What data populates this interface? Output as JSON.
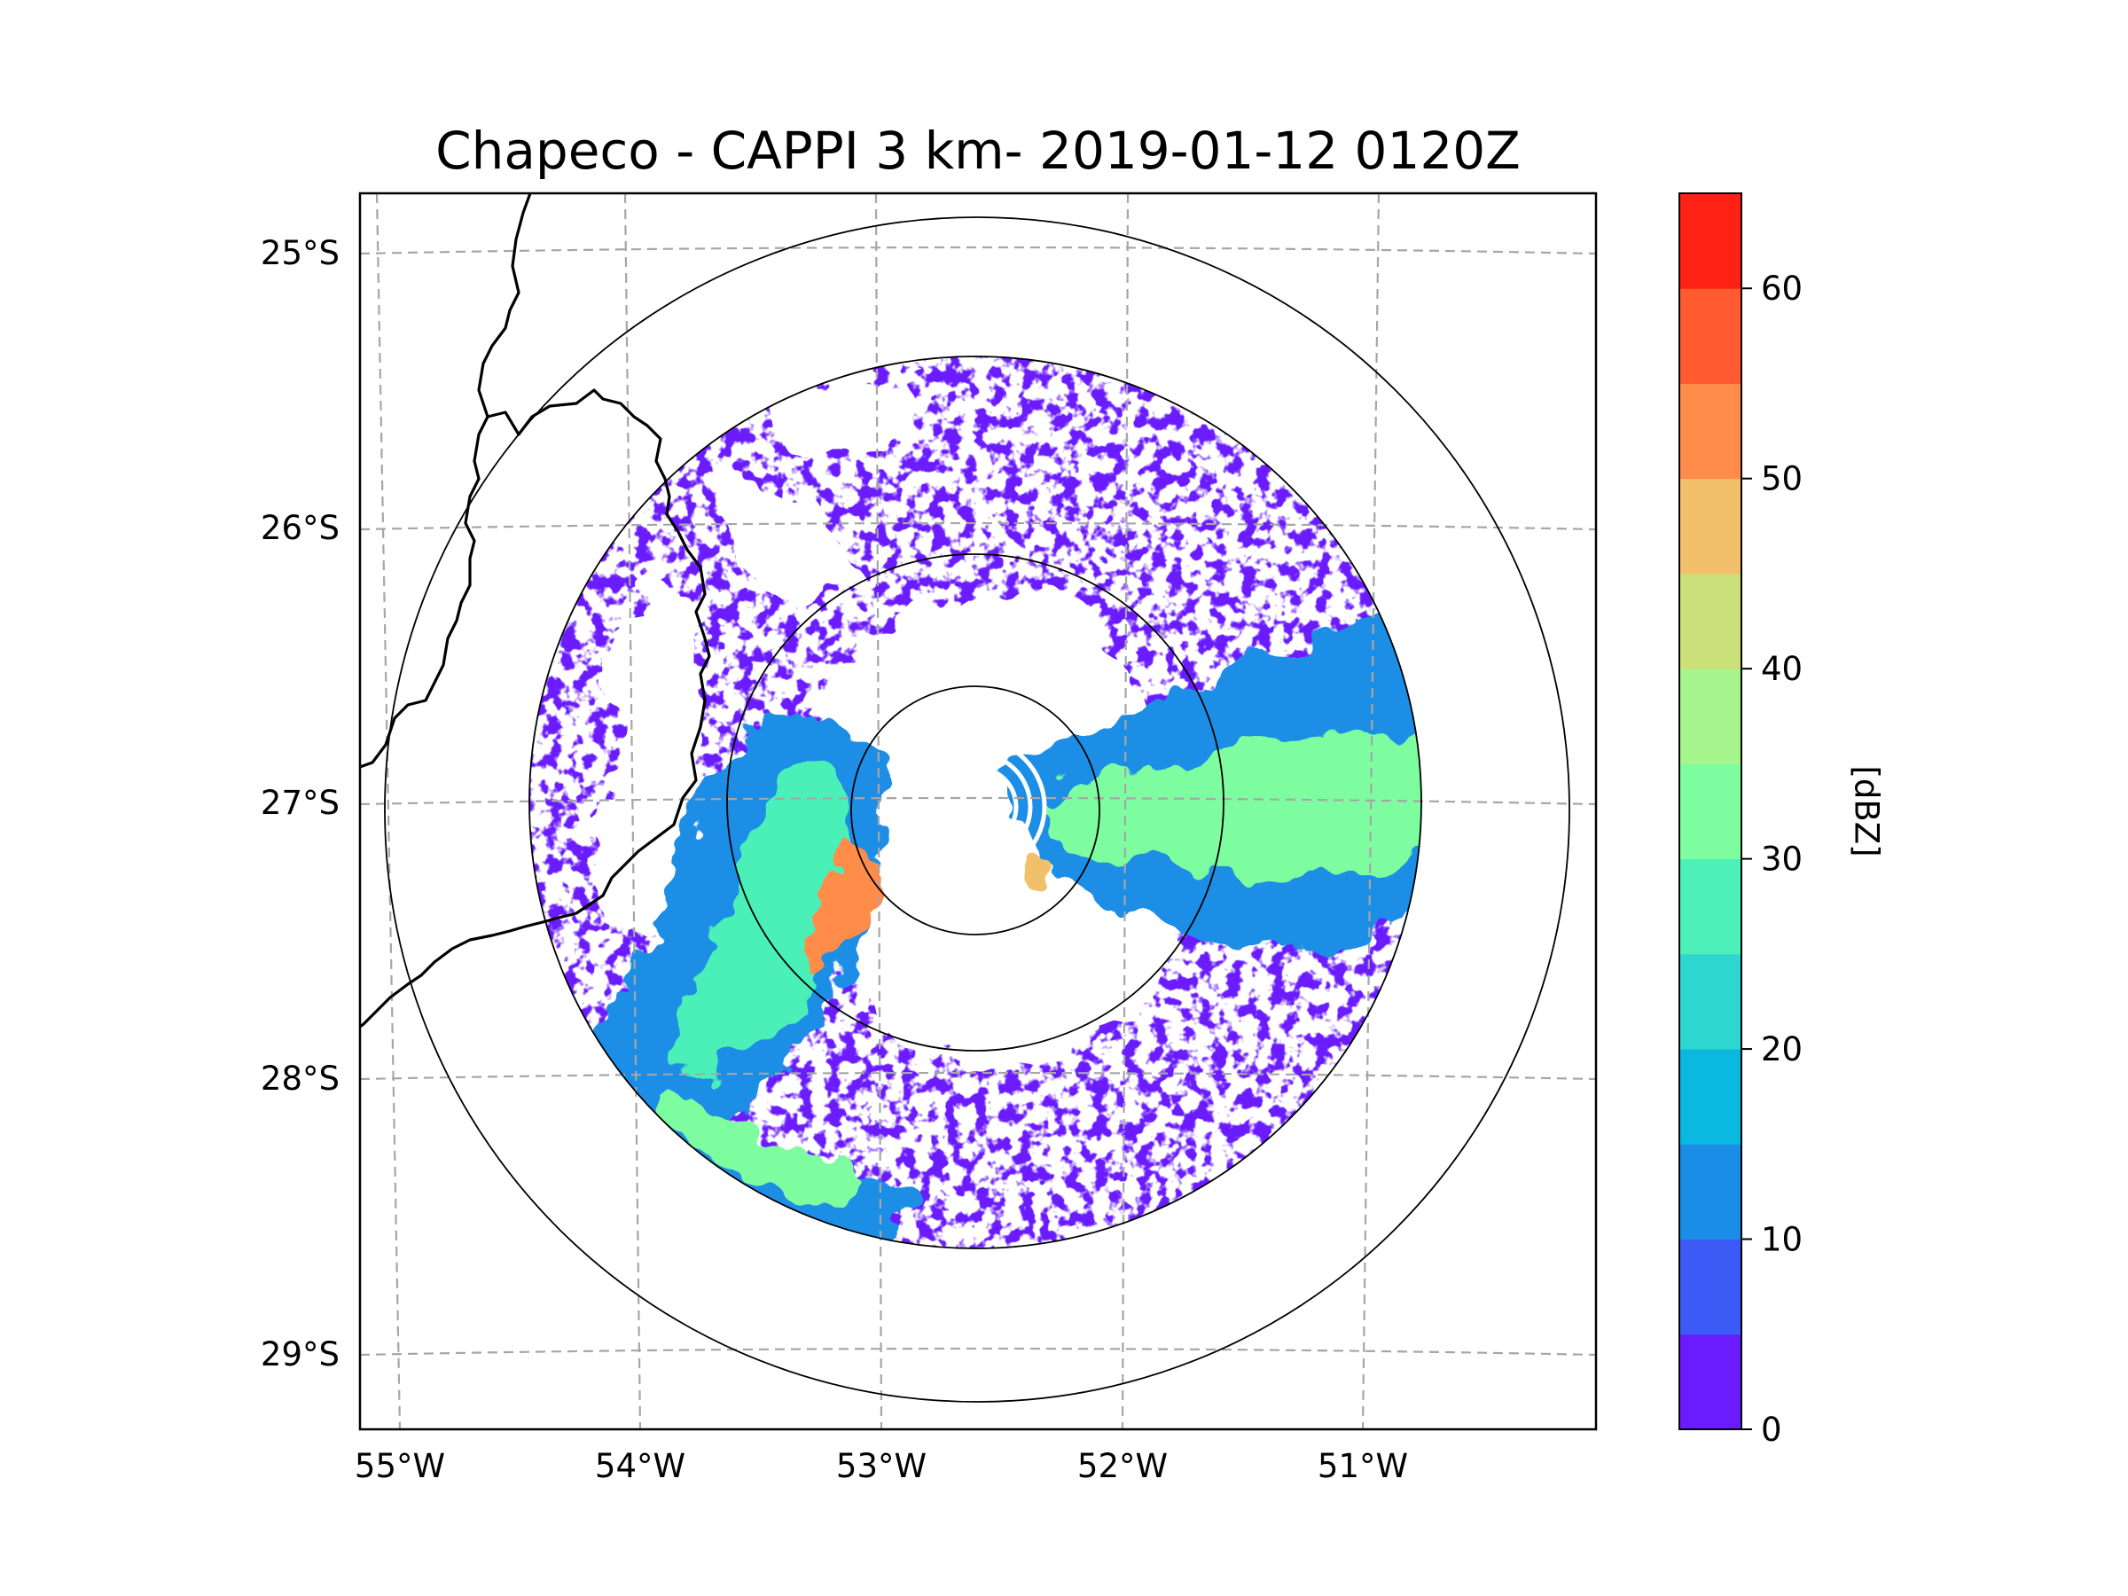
{
  "title": "Chapeco - CAPPI 3 km- 2019-01-12 0120Z",
  "lon_labels": [
    "55°W",
    "54°W",
    "53°W",
    "52°W",
    "51°W"
  ],
  "lat_labels": [
    "25°S",
    "26°S",
    "27°S",
    "28°S",
    "29°S"
  ],
  "colorbar": {
    "unit": "[dBZ]",
    "ticks": [
      "0",
      "10",
      "20",
      "30",
      "40",
      "50",
      "60"
    ],
    "tick_values": [
      0,
      10,
      20,
      30,
      40,
      50,
      60
    ],
    "range": [
      0,
      65
    ],
    "colors": [
      "#6a1cff",
      "#3c5af5",
      "#1a8ee6",
      "#0ab8e0",
      "#2ed6d0",
      "#4cf0b8",
      "#7dfca0",
      "#a6f48c",
      "#cce07a",
      "#f2c06a",
      "#ff8c4a",
      "#ff5a30",
      "#ff2214"
    ]
  },
  "map_extent": {
    "lon": [
      -55.2,
      -50.05
    ],
    "lat": [
      -29.3,
      -24.8
    ]
  },
  "radar_site": {
    "lon": -52.6,
    "lat": -27.0
  },
  "colors": {
    "clear": "#ffffff",
    "border_line": "#000000",
    "grid_line": "#a6a6a6"
  }
}
